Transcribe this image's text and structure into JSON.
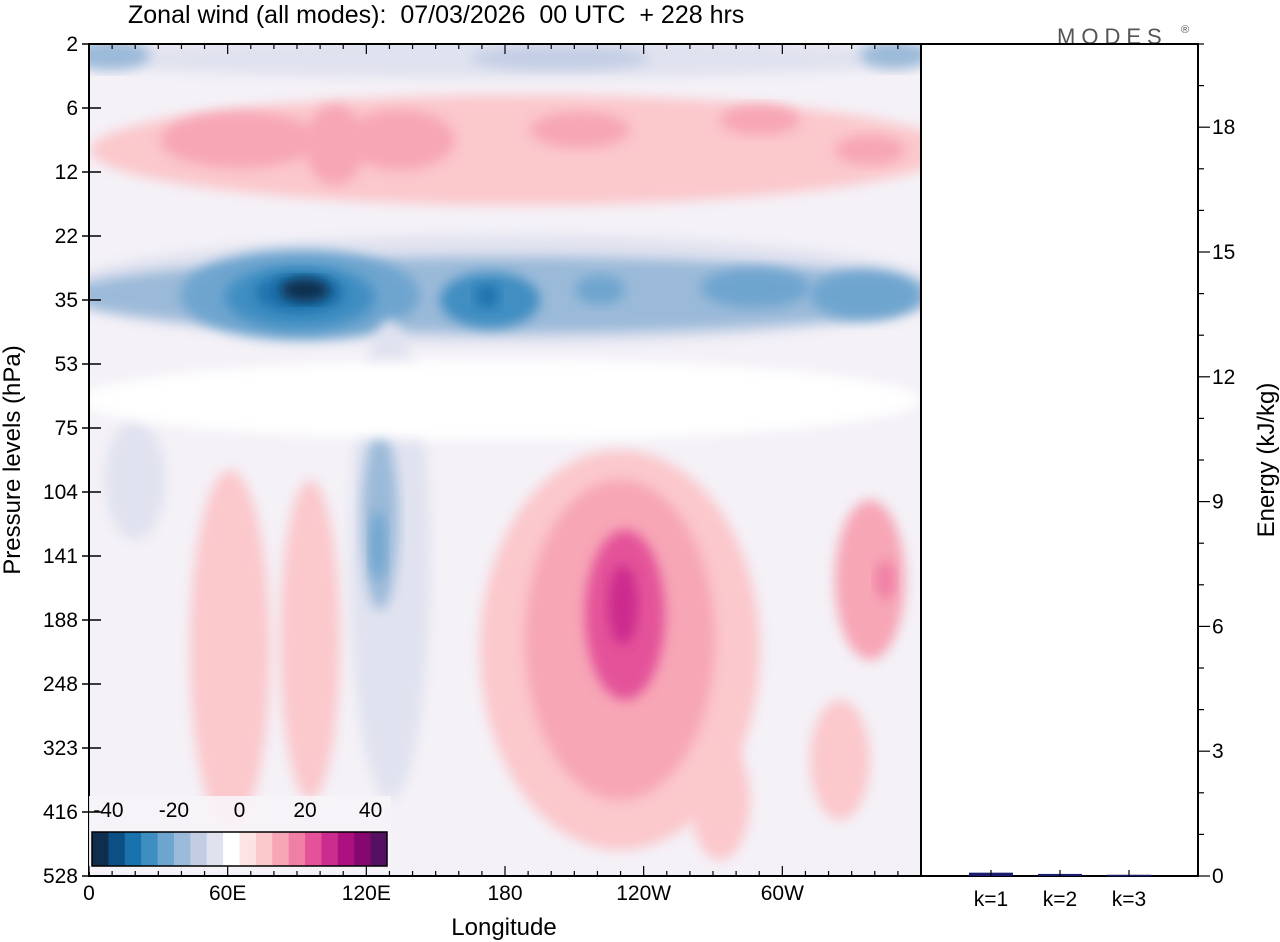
{
  "chart_data": [
    {
      "type": "heatmap",
      "title": "Zonal wind (all modes):  07/03/2026  00 UTC  + 228 hrs",
      "xlabel": "Longitude",
      "ylabel": "Pressure levels (hPa)",
      "x_ticks": [
        "0",
        "60E",
        "120E",
        "180",
        "120W",
        "60W"
      ],
      "x_tick_values_deg_east": [
        0,
        60,
        120,
        180,
        240,
        300
      ],
      "xlim_deg_east": [
        0,
        360
      ],
      "y_ticks": [
        "2",
        "6",
        "12",
        "22",
        "35",
        "53",
        "75",
        "104",
        "141",
        "188",
        "248",
        "323",
        "416",
        "528"
      ],
      "colorbar": {
        "labels": [
          "-40",
          "-20",
          "0",
          "20",
          "40"
        ],
        "label_values": [
          -40,
          -20,
          0,
          20,
          40
        ],
        "min": -45,
        "max": 45,
        "step": 5,
        "colors": [
          "#0f2d4d",
          "#0c4f84",
          "#1a72ad",
          "#3f8ec2",
          "#6ea5cf",
          "#9bbad9",
          "#c2cde4",
          "#e0e2ef",
          "#ffffff",
          "#fde4e4",
          "#fbc8cc",
          "#f7a6b6",
          "#f07fa5",
          "#e4539a",
          "#cc2c8d",
          "#ab117e",
          "#84086f",
          "#551062"
        ]
      },
      "features": [
        {
          "name": "upper-jet-east",
          "lon": 95,
          "level_index": 4,
          "value": -40
        },
        {
          "name": "upper-jet-mid",
          "lon": 168,
          "level_index": 4,
          "value": -30
        },
        {
          "name": "upper-jet-west",
          "lon": 300,
          "level_index": 4,
          "value": -25
        },
        {
          "name": "top-easterly",
          "lon": 0,
          "level_index": 0,
          "value": -15
        },
        {
          "name": "stratospheric-westerly-1",
          "lon": 70,
          "level_index": 1.6,
          "value": 12
        },
        {
          "name": "stratospheric-westerly-2",
          "lon": 215,
          "level_index": 1.5,
          "value": 10
        },
        {
          "name": "lower-westerly-pacific",
          "lon": 230,
          "level_index": 9,
          "value": 25
        },
        {
          "name": "lower-westerly-east",
          "lon": 345,
          "level_index": 8.7,
          "value": 12
        },
        {
          "name": "lower-westerly-africa",
          "lon": 60,
          "level_index": 10,
          "value": 10
        },
        {
          "name": "tropical-easterly-120E",
          "lon": 125,
          "level_index": 8,
          "value": -18
        }
      ]
    },
    {
      "type": "bar",
      "ylabel": "Energy (kJ/kg)",
      "categories": [
        "k=1",
        "k=2",
        "k=3"
      ],
      "values": [
        0.08,
        0.05,
        0.03
      ],
      "ylim": [
        0,
        20
      ],
      "y_ticks": [
        "0",
        "3",
        "6",
        "9",
        "12",
        "15",
        "18"
      ],
      "y_tick_values": [
        0,
        3,
        6,
        9,
        12,
        15,
        18
      ],
      "bar_color": "#1a1a6e"
    }
  ],
  "logo": {
    "text": "MODES",
    "mark": "®"
  }
}
